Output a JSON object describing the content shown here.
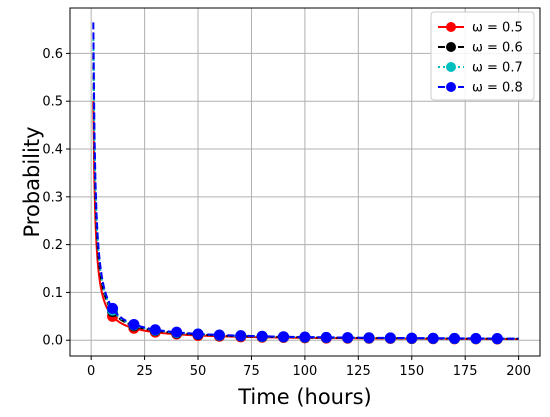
{
  "chart_data": {
    "type": "line",
    "title": "",
    "xlabel": "Time (hours)",
    "ylabel": "Probability",
    "xlim": [
      -9.9,
      210
    ],
    "ylim": [
      -0.033,
      0.695
    ],
    "x_ticks": [
      0,
      25,
      50,
      75,
      100,
      125,
      150,
      175,
      200
    ],
    "y_ticks": [
      0.0,
      0.1,
      0.2,
      0.3,
      0.4,
      0.5,
      0.6
    ],
    "grid": true,
    "legend_position": "top-right",
    "x_range": [
      1,
      200
    ],
    "marker_x": [
      10,
      20,
      30,
      40,
      50,
      60,
      70,
      80,
      90,
      100,
      110,
      120,
      130,
      140,
      150,
      160,
      170,
      180,
      190
    ],
    "series": [
      {
        "name": "ω = 0.5",
        "color": "#ff0000",
        "linestyle": "solid",
        "marker": "circle",
        "y0": 0.5,
        "marker_values": [
          0.05,
          0.025,
          0.017,
          0.013,
          0.01,
          0.0083,
          0.0071,
          0.0063,
          0.0056,
          0.005,
          0.0045,
          0.0042,
          0.0038,
          0.0036,
          0.0033,
          0.0031,
          0.0029,
          0.0028,
          0.0026
        ]
      },
      {
        "name": "ω = 0.6",
        "color": "#000000",
        "linestyle": "dashed",
        "marker": "circle",
        "y0": 0.6,
        "marker_values": [
          0.06,
          0.03,
          0.02,
          0.015,
          0.012,
          0.01,
          0.0086,
          0.0075,
          0.0067,
          0.006,
          0.0055,
          0.005,
          0.0046,
          0.0043,
          0.004,
          0.0038,
          0.0035,
          0.0033,
          0.0032
        ]
      },
      {
        "name": "ω = 0.7",
        "color": "#00bfbf",
        "linestyle": "dotted",
        "marker": "circle",
        "y0": 0.63,
        "marker_values": [
          0.063,
          0.032,
          0.021,
          0.016,
          0.013,
          0.0105,
          0.009,
          0.0079,
          0.007,
          0.0063,
          0.0057,
          0.0053,
          0.0048,
          0.0045,
          0.0042,
          0.0039,
          0.0037,
          0.0035,
          0.0033
        ]
      },
      {
        "name": "ω = 0.8",
        "color": "#0000ff",
        "linestyle": "dashed",
        "marker": "circle",
        "y0": 0.665,
        "marker_values": [
          0.0665,
          0.033,
          0.022,
          0.017,
          0.013,
          0.011,
          0.0095,
          0.0083,
          0.0074,
          0.0067,
          0.006,
          0.0055,
          0.0051,
          0.0048,
          0.0044,
          0.0042,
          0.0039,
          0.0037,
          0.0035
        ]
      }
    ]
  }
}
